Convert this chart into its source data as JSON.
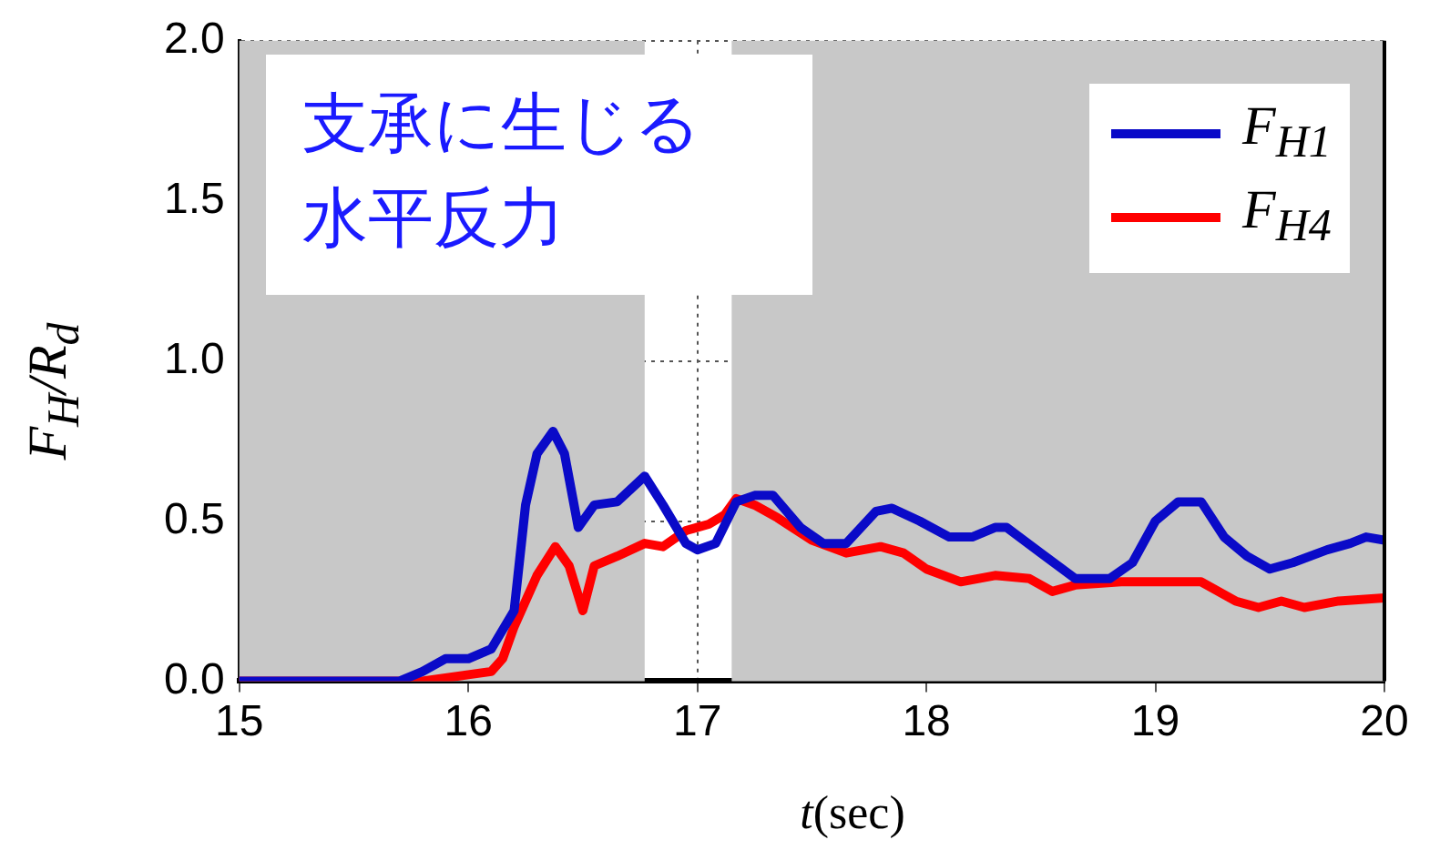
{
  "chart_data": {
    "type": "line",
    "xlabel": "t(sec)",
    "ylabel": "F$_{H}$/R$_{d}$",
    "annotations": [
      "支承に生じる水平反力"
    ],
    "xlim": [
      15,
      20
    ],
    "xticks": [
      15,
      16,
      17,
      18,
      19,
      20
    ],
    "ylim": [
      0,
      2
    ],
    "yticks": [
      {
        "value": 0,
        "label": "0.0"
      },
      {
        "value": 0.5,
        "label": "0.5"
      },
      {
        "value": 1,
        "label": "1.0"
      },
      {
        "value": 1.5,
        "label": "1.5"
      },
      {
        "value": 2,
        "label": "2.0"
      }
    ],
    "grid": true,
    "legend": "top right",
    "marker": "none",
    "line_style": "solid",
    "bands": [
      {
        "axis": "x",
        "from": 15,
        "to": 16.77,
        "color": "#c8c8c8"
      },
      {
        "axis": "x",
        "from": 17.15,
        "to": 20,
        "color": "#c8c8c8"
      }
    ],
    "series": [
      {
        "name": "F$_{H1}$",
        "color": "#0a0ac8",
        "x": [
          15,
          15.7,
          15.8,
          15.9,
          16.0,
          16.1,
          16.2,
          16.25,
          16.3,
          16.37,
          16.42,
          16.48,
          16.55,
          16.65,
          16.77,
          16.85,
          16.95,
          17.0,
          17.08,
          17.17,
          17.25,
          17.33,
          17.45,
          17.55,
          17.65,
          17.78,
          17.85,
          17.97,
          18.1,
          18.2,
          18.3,
          18.35,
          18.5,
          18.65,
          18.8,
          18.9,
          19.0,
          19.1,
          19.2,
          19.3,
          19.4,
          19.5,
          19.6,
          19.75,
          19.85,
          19.92,
          20
        ],
        "values": [
          0,
          0,
          0.03,
          0.07,
          0.07,
          0.1,
          0.22,
          0.55,
          0.71,
          0.78,
          0.71,
          0.48,
          0.55,
          0.56,
          0.64,
          0.55,
          0.43,
          0.41,
          0.43,
          0.56,
          0.58,
          0.58,
          0.48,
          0.43,
          0.43,
          0.53,
          0.54,
          0.5,
          0.45,
          0.45,
          0.48,
          0.48,
          0.4,
          0.32,
          0.32,
          0.37,
          0.5,
          0.56,
          0.56,
          0.45,
          0.39,
          0.35,
          0.37,
          0.41,
          0.43,
          0.45,
          0.44
        ]
      },
      {
        "name": "F$_{H4}$",
        "color": "#ff0000",
        "x": [
          15,
          15.8,
          15.9,
          16.0,
          16.1,
          16.15,
          16.2,
          16.3,
          16.38,
          16.44,
          16.5,
          16.55,
          16.65,
          16.77,
          16.85,
          16.95,
          17.05,
          17.12,
          17.17,
          17.25,
          17.35,
          17.5,
          17.65,
          17.8,
          17.9,
          18.0,
          18.15,
          18.3,
          18.45,
          18.55,
          18.65,
          18.85,
          19.0,
          19.2,
          19.35,
          19.45,
          19.55,
          19.65,
          19.8,
          20
        ],
        "values": [
          0,
          0,
          0.01,
          0.02,
          0.03,
          0.07,
          0.17,
          0.33,
          0.42,
          0.36,
          0.22,
          0.36,
          0.39,
          0.43,
          0.42,
          0.47,
          0.49,
          0.52,
          0.57,
          0.55,
          0.51,
          0.44,
          0.4,
          0.42,
          0.4,
          0.35,
          0.31,
          0.33,
          0.32,
          0.28,
          0.3,
          0.31,
          0.31,
          0.31,
          0.25,
          0.23,
          0.25,
          0.23,
          0.25,
          0.26
        ]
      }
    ]
  }
}
